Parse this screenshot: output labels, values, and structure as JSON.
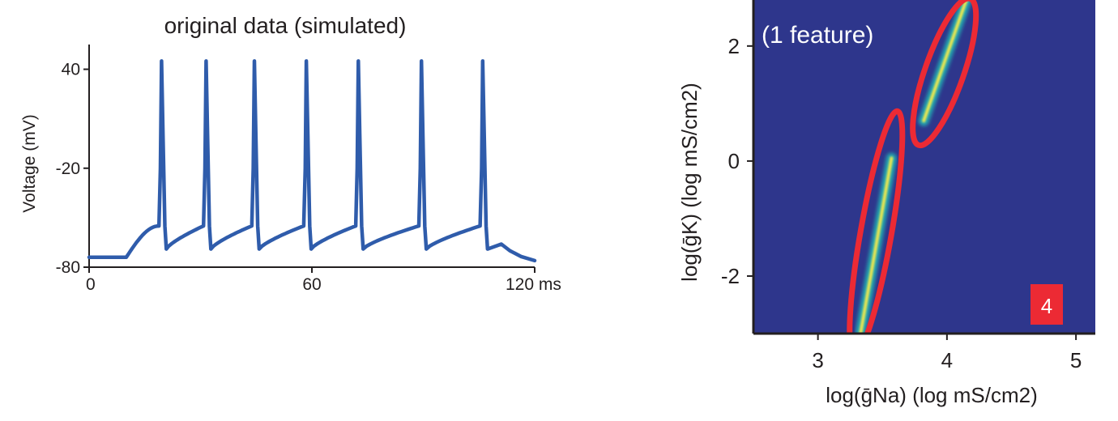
{
  "colors": {
    "trace": "#2f5cab",
    "title": "#2f5cab",
    "heat_bg": "#2e368c",
    "ridge_mid": "#21a7b0",
    "ridge_core": "#f1e84d",
    "ellipse": "#ec2a34",
    "badge": "#ec2a34",
    "axis": "#231f20"
  },
  "chart_data": [
    {
      "type": "line",
      "title": "original data (simulated)",
      "xlabel": "",
      "ylabel": "Voltage (mV)",
      "xlim": [
        0,
        120
      ],
      "ylim": [
        -80,
        55
      ],
      "x_ticks": [
        {
          "value": 0,
          "label": "0"
        },
        {
          "value": 60,
          "label": "60"
        },
        {
          "value": 120,
          "label": "120 ms"
        }
      ],
      "y_ticks": [
        {
          "value": 40,
          "label": "40"
        },
        {
          "value": -20,
          "label": "-20"
        },
        {
          "value": -80,
          "label": "-80"
        }
      ],
      "series": [
        {
          "resting_mV": -74,
          "stim_onset_ms": 10,
          "spike_times_ms": [
            19.5,
            31.5,
            44.5,
            58.5,
            72.5,
            89.5,
            106
          ],
          "spike_peak_mV": 45,
          "afterhyperpolarization_mV": -69,
          "pre_spike_threshold_mV": -55,
          "x": [
            0,
            10,
            19.5,
            31.5,
            44.5,
            58.5,
            72.5,
            89.5,
            106,
            111,
            120
          ],
          "y": [
            -74,
            -74,
            45,
            45,
            45,
            45,
            45,
            45,
            45,
            -68,
            -76
          ]
        }
      ]
    },
    {
      "type": "heatmap",
      "title": "",
      "annotation": "(1 feature)",
      "badge": "4",
      "xlabel": "log(ḡNa) (log mS/cm2)",
      "ylabel": "log(ḡK) (log mS/cm2)",
      "xlim": [
        2.5,
        5.15
      ],
      "ylim": [
        -3,
        2.8
      ],
      "x_ticks": [
        {
          "value": 3,
          "label": "3"
        },
        {
          "value": 4,
          "label": "4"
        },
        {
          "value": 5,
          "label": "5"
        }
      ],
      "y_ticks": [
        {
          "value": 2,
          "label": "2"
        },
        {
          "value": 0,
          "label": "0"
        },
        {
          "value": -2,
          "label": "-2"
        }
      ],
      "ridges": [
        {
          "from": [
            3.33,
            -3.0
          ],
          "to": [
            3.57,
            0.05
          ]
        },
        {
          "from": [
            3.82,
            0.7
          ],
          "to": [
            4.15,
            2.8
          ]
        }
      ],
      "ellipses": [
        {
          "center": [
            3.45,
            -1.25
          ],
          "half_length": 2.15,
          "half_width": 0.12
        },
        {
          "center": [
            3.98,
            1.55
          ],
          "half_length": 1.35,
          "half_width": 0.15
        }
      ]
    }
  ]
}
